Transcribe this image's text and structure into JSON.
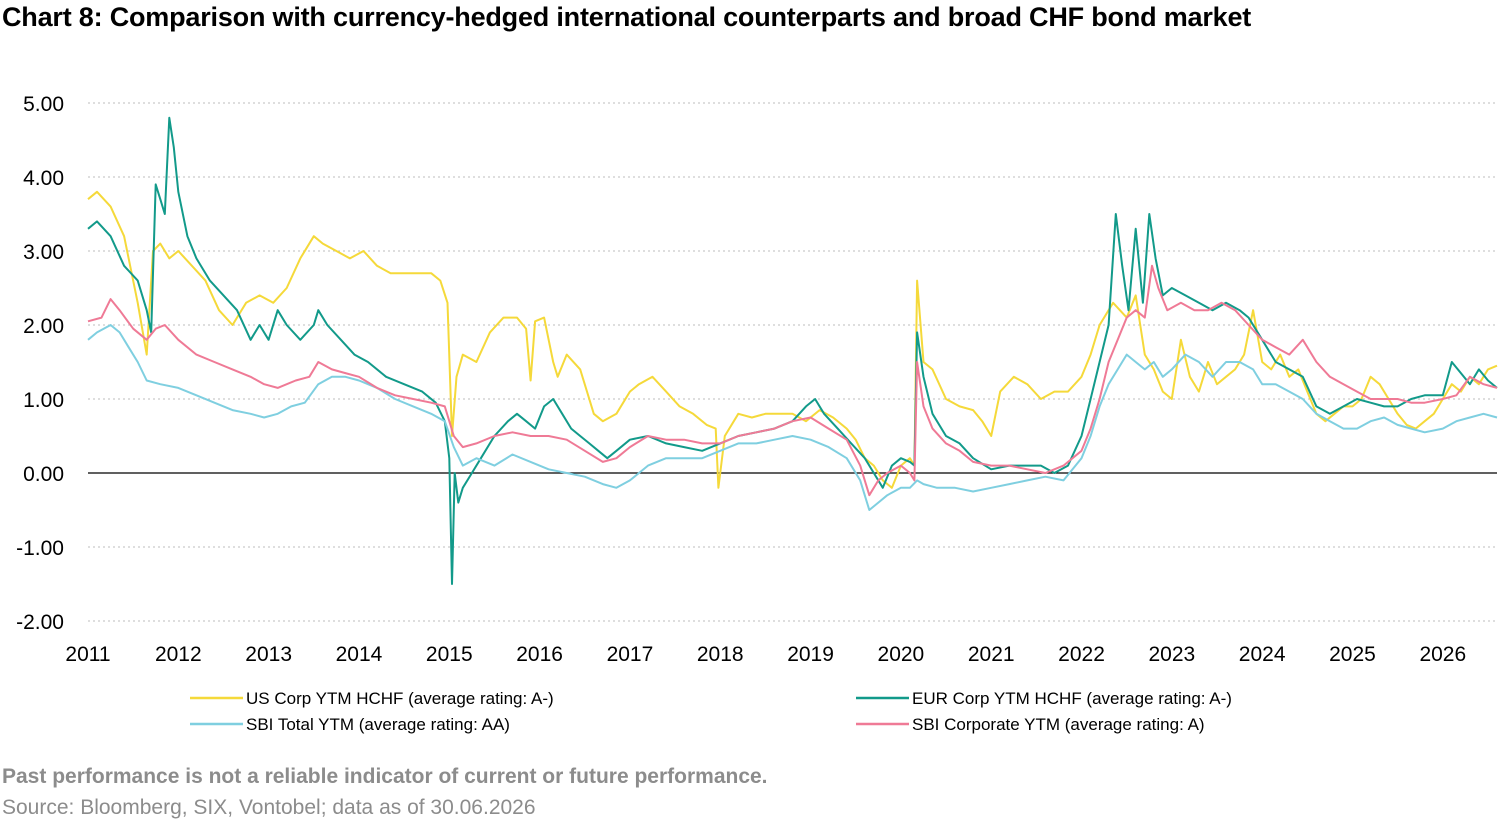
{
  "title": "Chart 8: Comparison with currency-hedged international counterparts and broad CHF bond market",
  "footer": {
    "disclaimer": "Past performance is not a reliable indicator of current or future performance.",
    "source": "Source: Bloomberg, SIX, Vontobel; data as of 30.06.2026"
  },
  "chart_data": {
    "type": "line",
    "title": "Chart 8: Comparison with currency-hedged international counterparts and broad CHF bond market",
    "xlabel": "",
    "ylabel": "",
    "xlim": [
      2011.0,
      2026.6
    ],
    "ylim": [
      -2.0,
      5.0
    ],
    "y_ticks": [
      "-2.00",
      "-1.00",
      "0.00",
      "1.00",
      "2.00",
      "3.00",
      "4.00",
      "5.00"
    ],
    "x_ticks": [
      "2011",
      "2012",
      "2013",
      "2014",
      "2015",
      "2016",
      "2017",
      "2018",
      "2019",
      "2020",
      "2021",
      "2022",
      "2023",
      "2024",
      "2025",
      "2026"
    ],
    "grid": "horizontal dotted",
    "legend_position": "bottom",
    "series": [
      {
        "name": "US Corp YTM HCHF (average rating: A-)",
        "color": "#f5d93a",
        "x": [
          2011.0,
          2011.1,
          2011.25,
          2011.4,
          2011.55,
          2011.65,
          2011.72,
          2011.8,
          2011.9,
          2012.0,
          2012.15,
          2012.3,
          2012.45,
          2012.6,
          2012.75,
          2012.9,
          2013.05,
          2013.2,
          2013.35,
          2013.5,
          2013.6,
          2013.75,
          2013.9,
          2014.05,
          2014.2,
          2014.35,
          2014.5,
          2014.65,
          2014.8,
          2014.9,
          2014.98,
          2015.03,
          2015.08,
          2015.15,
          2015.3,
          2015.45,
          2015.6,
          2015.75,
          2015.85,
          2015.9,
          2015.95,
          2016.05,
          2016.15,
          2016.2,
          2016.3,
          2016.45,
          2016.6,
          2016.7,
          2016.85,
          2017.0,
          2017.1,
          2017.25,
          2017.4,
          2017.55,
          2017.7,
          2017.85,
          2017.95,
          2017.98,
          2018.05,
          2018.2,
          2018.35,
          2018.5,
          2018.65,
          2018.8,
          2018.95,
          2019.1,
          2019.25,
          2019.4,
          2019.5,
          2019.6,
          2019.7,
          2019.8,
          2019.9,
          2020.0,
          2020.1,
          2020.15,
          2020.18,
          2020.25,
          2020.35,
          2020.5,
          2020.65,
          2020.8,
          2020.9,
          2021.0,
          2021.1,
          2021.25,
          2021.4,
          2021.55,
          2021.7,
          2021.85,
          2022.0,
          2022.1,
          2022.2,
          2022.35,
          2022.5,
          2022.6,
          2022.7,
          2022.8,
          2022.9,
          2023.0,
          2023.1,
          2023.2,
          2023.3,
          2023.4,
          2023.5,
          2023.6,
          2023.7,
          2023.8,
          2023.9,
          2024.0,
          2024.1,
          2024.2,
          2024.3,
          2024.4,
          2024.5,
          2024.6,
          2024.7,
          2024.8,
          2024.9,
          2025.0,
          2025.1,
          2025.2,
          2025.3,
          2025.4,
          2025.5,
          2025.6,
          2025.7,
          2025.8,
          2025.9,
          2026.0,
          2026.1,
          2026.2,
          2026.3,
          2026.4,
          2026.5,
          2026.6
        ],
        "values": [
          3.7,
          3.8,
          3.6,
          3.2,
          2.3,
          1.6,
          3.0,
          3.1,
          2.9,
          3.0,
          2.8,
          2.6,
          2.2,
          2.0,
          2.3,
          2.4,
          2.3,
          2.5,
          2.9,
          3.2,
          3.1,
          3.0,
          2.9,
          3.0,
          2.8,
          2.7,
          2.7,
          2.7,
          2.7,
          2.6,
          2.3,
          0.5,
          1.3,
          1.6,
          1.5,
          1.9,
          2.1,
          2.1,
          1.95,
          1.25,
          2.05,
          2.1,
          1.5,
          1.3,
          1.6,
          1.4,
          0.8,
          0.7,
          0.8,
          1.1,
          1.2,
          1.3,
          1.1,
          0.9,
          0.8,
          0.65,
          0.6,
          -0.2,
          0.5,
          0.8,
          0.75,
          0.8,
          0.8,
          0.8,
          0.7,
          0.85,
          0.75,
          0.6,
          0.45,
          0.2,
          0.1,
          -0.1,
          -0.2,
          0.1,
          0.2,
          0.1,
          2.6,
          1.5,
          1.4,
          1.0,
          0.9,
          0.85,
          0.7,
          0.5,
          1.1,
          1.3,
          1.2,
          1.0,
          1.1,
          1.1,
          1.3,
          1.6,
          2.0,
          2.3,
          2.1,
          2.4,
          1.6,
          1.4,
          1.1,
          1.0,
          1.8,
          1.3,
          1.1,
          1.5,
          1.2,
          1.3,
          1.4,
          1.6,
          2.2,
          1.5,
          1.4,
          1.6,
          1.3,
          1.4,
          1.1,
          0.8,
          0.7,
          0.8,
          0.9,
          0.9,
          1.0,
          1.3,
          1.2,
          1.0,
          0.8,
          0.65,
          0.6,
          0.7,
          0.8,
          1.0,
          1.2,
          1.1,
          1.3,
          1.2,
          1.4,
          1.45
        ]
      },
      {
        "name": "EUR Corp YTM HCHF (average rating: A-)",
        "color": "#129a8a",
        "x": [
          2011.0,
          2011.1,
          2011.25,
          2011.4,
          2011.55,
          2011.65,
          2011.7,
          2011.75,
          2011.8,
          2011.85,
          2011.9,
          2011.95,
          2012.0,
          2012.1,
          2012.2,
          2012.35,
          2012.5,
          2012.65,
          2012.8,
          2012.9,
          2013.0,
          2013.1,
          2013.2,
          2013.35,
          2013.5,
          2013.55,
          2013.65,
          2013.8,
          2013.95,
          2014.1,
          2014.3,
          2014.5,
          2014.7,
          2014.85,
          2014.95,
          2015.0,
          2015.03,
          2015.06,
          2015.1,
          2015.15,
          2015.25,
          2015.35,
          2015.5,
          2015.65,
          2015.75,
          2015.85,
          2015.95,
          2016.05,
          2016.15,
          2016.25,
          2016.35,
          2016.45,
          2016.55,
          2016.65,
          2016.75,
          2016.85,
          2017.0,
          2017.2,
          2017.4,
          2017.6,
          2017.8,
          2018.0,
          2018.2,
          2018.4,
          2018.6,
          2018.8,
          2018.95,
          2019.05,
          2019.15,
          2019.3,
          2019.45,
          2019.6,
          2019.7,
          2019.8,
          2019.9,
          2020.0,
          2020.1,
          2020.15,
          2020.18,
          2020.25,
          2020.35,
          2020.5,
          2020.65,
          2020.8,
          2021.0,
          2021.2,
          2021.4,
          2021.55,
          2021.7,
          2021.85,
          2022.0,
          2022.1,
          2022.2,
          2022.3,
          2022.38,
          2022.45,
          2022.52,
          2022.6,
          2022.68,
          2022.75,
          2022.82,
          2022.9,
          2023.0,
          2023.15,
          2023.3,
          2023.45,
          2023.6,
          2023.75,
          2023.85,
          2024.0,
          2024.15,
          2024.3,
          2024.45,
          2024.6,
          2024.75,
          2024.9,
          2025.05,
          2025.2,
          2025.35,
          2025.5,
          2025.65,
          2025.8,
          2026.0,
          2026.1,
          2026.2,
          2026.3,
          2026.4,
          2026.5,
          2026.6
        ],
        "values": [
          3.3,
          3.4,
          3.2,
          2.8,
          2.6,
          2.2,
          1.9,
          3.9,
          3.7,
          3.5,
          4.8,
          4.4,
          3.8,
          3.2,
          2.9,
          2.6,
          2.4,
          2.2,
          1.8,
          2.0,
          1.8,
          2.2,
          2.0,
          1.8,
          2.0,
          2.2,
          2.0,
          1.8,
          1.6,
          1.5,
          1.3,
          1.2,
          1.1,
          0.95,
          0.7,
          0.2,
          -1.5,
          0.0,
          -0.4,
          -0.2,
          0.0,
          0.2,
          0.5,
          0.7,
          0.8,
          0.7,
          0.6,
          0.9,
          1.0,
          0.8,
          0.6,
          0.5,
          0.4,
          0.3,
          0.2,
          0.3,
          0.45,
          0.5,
          0.4,
          0.35,
          0.3,
          0.4,
          0.5,
          0.55,
          0.6,
          0.7,
          0.9,
          1.0,
          0.8,
          0.6,
          0.4,
          0.2,
          0.0,
          -0.2,
          0.1,
          0.2,
          0.15,
          0.1,
          1.9,
          1.3,
          0.8,
          0.5,
          0.4,
          0.2,
          0.05,
          0.1,
          0.1,
          0.1,
          0.0,
          0.1,
          0.5,
          1.0,
          1.5,
          2.0,
          3.5,
          2.8,
          2.2,
          3.3,
          2.3,
          3.5,
          2.9,
          2.4,
          2.5,
          2.4,
          2.3,
          2.2,
          2.3,
          2.2,
          2.1,
          1.8,
          1.5,
          1.4,
          1.3,
          0.9,
          0.8,
          0.9,
          1.0,
          0.95,
          0.9,
          0.9,
          1.0,
          1.05,
          1.05,
          1.5,
          1.35,
          1.2,
          1.4,
          1.25,
          1.15
        ]
      },
      {
        "name": "SBI Total YTM (average rating: AA)",
        "color": "#7fcfe0",
        "x": [
          2011.0,
          2011.1,
          2011.25,
          2011.35,
          2011.45,
          2011.55,
          2011.65,
          2011.8,
          2012.0,
          2012.2,
          2012.4,
          2012.6,
          2012.8,
          2012.95,
          2013.1,
          2013.25,
          2013.4,
          2013.55,
          2013.7,
          2013.85,
          2014.0,
          2014.2,
          2014.4,
          2014.6,
          2014.8,
          2014.95,
          2015.05,
          2015.15,
          2015.3,
          2015.5,
          2015.7,
          2015.9,
          2016.1,
          2016.3,
          2016.5,
          2016.7,
          2016.85,
          2017.0,
          2017.2,
          2017.4,
          2017.6,
          2017.8,
          2018.0,
          2018.2,
          2018.4,
          2018.6,
          2018.8,
          2019.0,
          2019.2,
          2019.4,
          2019.55,
          2019.65,
          2019.75,
          2019.85,
          2020.0,
          2020.1,
          2020.18,
          2020.25,
          2020.4,
          2020.6,
          2020.8,
          2021.0,
          2021.2,
          2021.4,
          2021.6,
          2021.8,
          2022.0,
          2022.1,
          2022.2,
          2022.3,
          2022.4,
          2022.5,
          2022.6,
          2022.7,
          2022.8,
          2022.9,
          2023.0,
          2023.15,
          2023.3,
          2023.45,
          2023.6,
          2023.75,
          2023.9,
          2024.0,
          2024.15,
          2024.3,
          2024.45,
          2024.6,
          2024.75,
          2024.9,
          2025.05,
          2025.2,
          2025.35,
          2025.5,
          2025.65,
          2025.8,
          2026.0,
          2026.15,
          2026.3,
          2026.45,
          2026.6
        ],
        "values": [
          1.8,
          1.9,
          2.0,
          1.9,
          1.7,
          1.5,
          1.25,
          1.2,
          1.15,
          1.05,
          0.95,
          0.85,
          0.8,
          0.75,
          0.8,
          0.9,
          0.95,
          1.2,
          1.3,
          1.3,
          1.25,
          1.15,
          1.0,
          0.9,
          0.8,
          0.7,
          0.35,
          0.1,
          0.2,
          0.1,
          0.25,
          0.15,
          0.05,
          0.0,
          -0.05,
          -0.15,
          -0.2,
          -0.1,
          0.1,
          0.2,
          0.2,
          0.2,
          0.3,
          0.4,
          0.4,
          0.45,
          0.5,
          0.45,
          0.35,
          0.2,
          -0.1,
          -0.5,
          -0.4,
          -0.3,
          -0.2,
          -0.2,
          -0.1,
          -0.15,
          -0.2,
          -0.2,
          -0.25,
          -0.2,
          -0.15,
          -0.1,
          -0.05,
          -0.1,
          0.2,
          0.5,
          0.9,
          1.2,
          1.4,
          1.6,
          1.5,
          1.4,
          1.5,
          1.3,
          1.4,
          1.6,
          1.5,
          1.3,
          1.5,
          1.5,
          1.4,
          1.2,
          1.2,
          1.1,
          1.0,
          0.8,
          0.7,
          0.6,
          0.6,
          0.7,
          0.75,
          0.65,
          0.6,
          0.55,
          0.6,
          0.7,
          0.75,
          0.8,
          0.75
        ]
      },
      {
        "name": "SBI Corporate YTM (average rating: A)",
        "color": "#ef7a96",
        "x": [
          2011.0,
          2011.15,
          2011.25,
          2011.35,
          2011.5,
          2011.65,
          2011.75,
          2011.85,
          2012.0,
          2012.2,
          2012.4,
          2012.6,
          2012.8,
          2012.95,
          2013.1,
          2013.3,
          2013.45,
          2013.55,
          2013.7,
          2013.85,
          2014.0,
          2014.2,
          2014.4,
          2014.6,
          2014.8,
          2014.95,
          2015.05,
          2015.15,
          2015.3,
          2015.5,
          2015.7,
          2015.9,
          2016.1,
          2016.3,
          2016.5,
          2016.7,
          2016.85,
          2017.0,
          2017.2,
          2017.4,
          2017.6,
          2017.8,
          2018.0,
          2018.2,
          2018.4,
          2018.6,
          2018.8,
          2019.0,
          2019.2,
          2019.4,
          2019.55,
          2019.65,
          2019.75,
          2019.85,
          2020.0,
          2020.1,
          2020.15,
          2020.18,
          2020.25,
          2020.35,
          2020.5,
          2020.65,
          2020.8,
          2021.0,
          2021.2,
          2021.4,
          2021.6,
          2021.8,
          2022.0,
          2022.1,
          2022.2,
          2022.3,
          2022.4,
          2022.5,
          2022.6,
          2022.7,
          2022.78,
          2022.85,
          2022.95,
          2023.1,
          2023.25,
          2023.4,
          2023.55,
          2023.7,
          2023.85,
          2024.0,
          2024.15,
          2024.3,
          2024.45,
          2024.6,
          2024.75,
          2024.9,
          2025.05,
          2025.2,
          2025.35,
          2025.5,
          2025.65,
          2025.8,
          2026.0,
          2026.15,
          2026.3,
          2026.45,
          2026.6
        ],
        "values": [
          2.05,
          2.1,
          2.35,
          2.2,
          1.95,
          1.8,
          1.95,
          2.0,
          1.8,
          1.6,
          1.5,
          1.4,
          1.3,
          1.2,
          1.15,
          1.25,
          1.3,
          1.5,
          1.4,
          1.35,
          1.3,
          1.15,
          1.05,
          1.0,
          0.95,
          0.9,
          0.5,
          0.35,
          0.4,
          0.5,
          0.55,
          0.5,
          0.5,
          0.45,
          0.3,
          0.15,
          0.2,
          0.35,
          0.5,
          0.45,
          0.45,
          0.4,
          0.4,
          0.5,
          0.55,
          0.6,
          0.7,
          0.75,
          0.6,
          0.45,
          0.1,
          -0.3,
          -0.1,
          0.0,
          0.1,
          0.0,
          -0.1,
          1.5,
          0.9,
          0.6,
          0.4,
          0.3,
          0.15,
          0.1,
          0.1,
          0.05,
          0.0,
          0.1,
          0.3,
          0.6,
          1.0,
          1.5,
          1.8,
          2.1,
          2.2,
          2.1,
          2.8,
          2.5,
          2.2,
          2.3,
          2.2,
          2.2,
          2.3,
          2.2,
          2.0,
          1.8,
          1.7,
          1.6,
          1.8,
          1.5,
          1.3,
          1.2,
          1.1,
          1.0,
          1.0,
          1.0,
          0.95,
          0.95,
          1.0,
          1.05,
          1.3,
          1.2,
          1.15
        ]
      }
    ]
  }
}
